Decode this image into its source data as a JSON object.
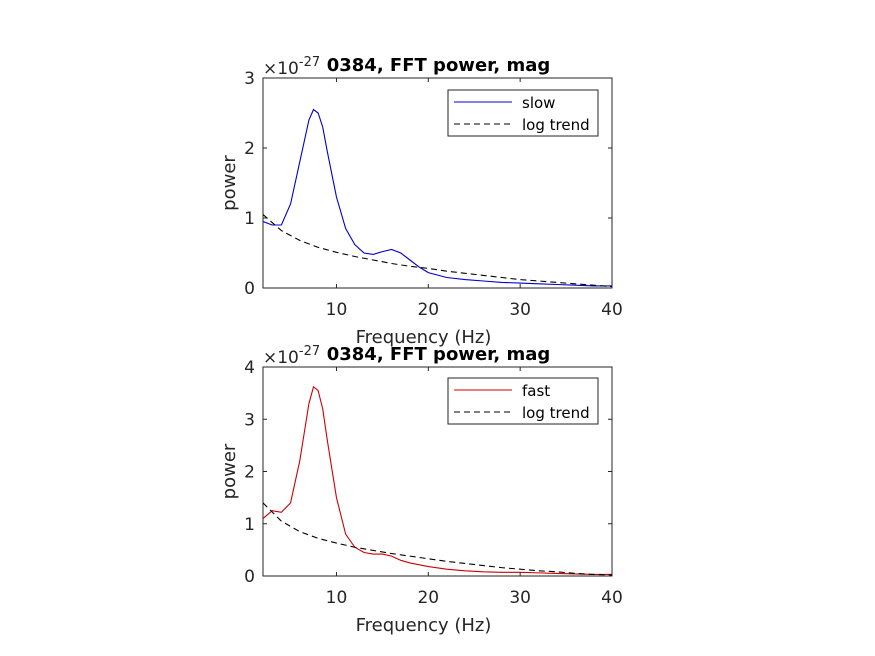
{
  "chart_data": [
    {
      "type": "line",
      "title": "0384, FFT power, mag",
      "xlabel": "Frequency (Hz)",
      "ylabel": "power",
      "y_exponent_label": "×10",
      "y_exponent": "-27",
      "xlim": [
        2,
        40
      ],
      "ylim": [
        0,
        3
      ],
      "xticks": [
        "10",
        "20",
        "30",
        "40"
      ],
      "yticks": [
        "0",
        "1",
        "2",
        "3"
      ],
      "legend_position": "top-right",
      "grid": false,
      "series": [
        {
          "name": "slow",
          "color": "#0000cc",
          "dash": "solid",
          "x": [
            2,
            3,
            4,
            5,
            6,
            7,
            7.5,
            8,
            8.5,
            9,
            10,
            11,
            12,
            13,
            14,
            15,
            16,
            17,
            18,
            19,
            20,
            22,
            24,
            26,
            28,
            30,
            32,
            34,
            36,
            38,
            40
          ],
          "y": [
            0.95,
            0.9,
            0.9,
            1.2,
            1.8,
            2.4,
            2.55,
            2.5,
            2.3,
            1.95,
            1.3,
            0.85,
            0.62,
            0.5,
            0.48,
            0.52,
            0.55,
            0.5,
            0.4,
            0.3,
            0.22,
            0.15,
            0.12,
            0.1,
            0.08,
            0.07,
            0.06,
            0.05,
            0.04,
            0.03,
            0.03
          ]
        },
        {
          "name": "log trend",
          "color": "#000000",
          "dash": "dashed",
          "x": [
            2,
            4,
            6,
            8,
            10,
            12,
            14,
            16,
            18,
            20,
            22,
            24,
            26,
            28,
            30,
            32,
            34,
            36,
            38,
            40
          ],
          "y": [
            1.05,
            0.82,
            0.68,
            0.58,
            0.51,
            0.45,
            0.4,
            0.35,
            0.31,
            0.28,
            0.24,
            0.21,
            0.18,
            0.15,
            0.12,
            0.1,
            0.08,
            0.06,
            0.04,
            0.02
          ]
        }
      ]
    },
    {
      "type": "line",
      "title": "0384, FFT power, mag",
      "xlabel": "Frequency (Hz)",
      "ylabel": "power",
      "y_exponent_label": "×10",
      "y_exponent": "-27",
      "xlim": [
        2,
        40
      ],
      "ylim": [
        0,
        4
      ],
      "xticks": [
        "10",
        "20",
        "30",
        "40"
      ],
      "yticks": [
        "0",
        "1",
        "2",
        "3",
        "4"
      ],
      "legend_position": "top-right",
      "grid": false,
      "series": [
        {
          "name": "fast",
          "color": "#cc0000",
          "dash": "solid",
          "x": [
            2,
            3,
            4,
            5,
            6,
            7,
            7.5,
            8,
            8.5,
            9,
            10,
            11,
            12,
            13,
            14,
            15,
            16,
            17,
            18,
            20,
            22,
            24,
            26,
            28,
            30,
            32,
            34,
            36,
            38,
            40
          ],
          "y": [
            1.1,
            1.25,
            1.22,
            1.4,
            2.2,
            3.3,
            3.62,
            3.55,
            3.2,
            2.6,
            1.5,
            0.8,
            0.55,
            0.45,
            0.42,
            0.42,
            0.38,
            0.3,
            0.25,
            0.18,
            0.13,
            0.1,
            0.08,
            0.07,
            0.07,
            0.06,
            0.05,
            0.04,
            0.03,
            0.03
          ]
        },
        {
          "name": "log trend",
          "color": "#000000",
          "dash": "dashed",
          "x": [
            2,
            4,
            6,
            8,
            10,
            12,
            14,
            16,
            18,
            20,
            22,
            24,
            26,
            28,
            30,
            32,
            34,
            36,
            38,
            40
          ],
          "y": [
            1.4,
            1.05,
            0.85,
            0.72,
            0.63,
            0.55,
            0.49,
            0.43,
            0.38,
            0.33,
            0.28,
            0.24,
            0.2,
            0.16,
            0.13,
            0.1,
            0.08,
            0.05,
            0.03,
            0.02
          ]
        }
      ]
    }
  ]
}
